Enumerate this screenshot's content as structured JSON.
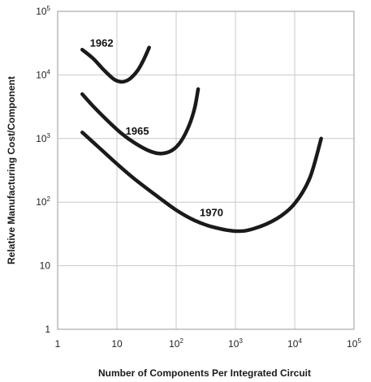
{
  "chart_data": {
    "type": "line",
    "title": "",
    "xlabel": "Number of Components Per Integrated Circuit",
    "ylabel": "Relative Manufacturing Cost/Component",
    "x_scale": "log",
    "y_scale": "log",
    "xlim": [
      1,
      100000
    ],
    "ylim": [
      1,
      100000
    ],
    "grid": true,
    "legend": "none",
    "x_ticks": [
      {
        "value": 1,
        "base": "1",
        "exp": ""
      },
      {
        "value": 10,
        "base": "10",
        "exp": ""
      },
      {
        "value": 100,
        "base": "10",
        "exp": "2"
      },
      {
        "value": 1000,
        "base": "10",
        "exp": "3"
      },
      {
        "value": 10000,
        "base": "10",
        "exp": "4"
      },
      {
        "value": 100000,
        "base": "10",
        "exp": "5"
      }
    ],
    "y_ticks": [
      {
        "value": 1,
        "base": "1",
        "exp": ""
      },
      {
        "value": 10,
        "base": "10",
        "exp": ""
      },
      {
        "value": 100,
        "base": "10",
        "exp": "2"
      },
      {
        "value": 1000,
        "base": "10",
        "exp": "3"
      },
      {
        "value": 10000,
        "base": "10",
        "exp": "4"
      },
      {
        "value": 100000,
        "base": "10",
        "exp": "5"
      }
    ],
    "series": [
      {
        "name": "1962",
        "label_at": {
          "x": 3.5,
          "y": 28000
        },
        "points": [
          {
            "x": 2.6,
            "y": 25000
          },
          {
            "x": 4,
            "y": 18000
          },
          {
            "x": 6,
            "y": 12000
          },
          {
            "x": 9,
            "y": 8500
          },
          {
            "x": 12,
            "y": 7800
          },
          {
            "x": 16,
            "y": 8500
          },
          {
            "x": 22,
            "y": 11500
          },
          {
            "x": 28,
            "y": 17000
          },
          {
            "x": 35,
            "y": 27000
          }
        ]
      },
      {
        "name": "1965",
        "label_at": {
          "x": 14,
          "y": 1150
        },
        "points": [
          {
            "x": 2.6,
            "y": 5000
          },
          {
            "x": 4,
            "y": 3200
          },
          {
            "x": 7,
            "y": 1900
          },
          {
            "x": 12,
            "y": 1200
          },
          {
            "x": 20,
            "y": 850
          },
          {
            "x": 35,
            "y": 640
          },
          {
            "x": 55,
            "y": 580
          },
          {
            "x": 85,
            "y": 650
          },
          {
            "x": 120,
            "y": 900
          },
          {
            "x": 165,
            "y": 1600
          },
          {
            "x": 205,
            "y": 3000
          },
          {
            "x": 235,
            "y": 6000
          }
        ]
      },
      {
        "name": "1970",
        "label_at": {
          "x": 250,
          "y": 60
        },
        "points": [
          {
            "x": 2.6,
            "y": 1250
          },
          {
            "x": 5,
            "y": 720
          },
          {
            "x": 10,
            "y": 400
          },
          {
            "x": 20,
            "y": 230
          },
          {
            "x": 50,
            "y": 120
          },
          {
            "x": 100,
            "y": 75
          },
          {
            "x": 200,
            "y": 52
          },
          {
            "x": 400,
            "y": 41
          },
          {
            "x": 1000,
            "y": 35
          },
          {
            "x": 2000,
            "y": 38
          },
          {
            "x": 5000,
            "y": 55
          },
          {
            "x": 10000,
            "y": 95
          },
          {
            "x": 18000,
            "y": 240
          },
          {
            "x": 28000,
            "y": 1000
          }
        ]
      }
    ]
  }
}
